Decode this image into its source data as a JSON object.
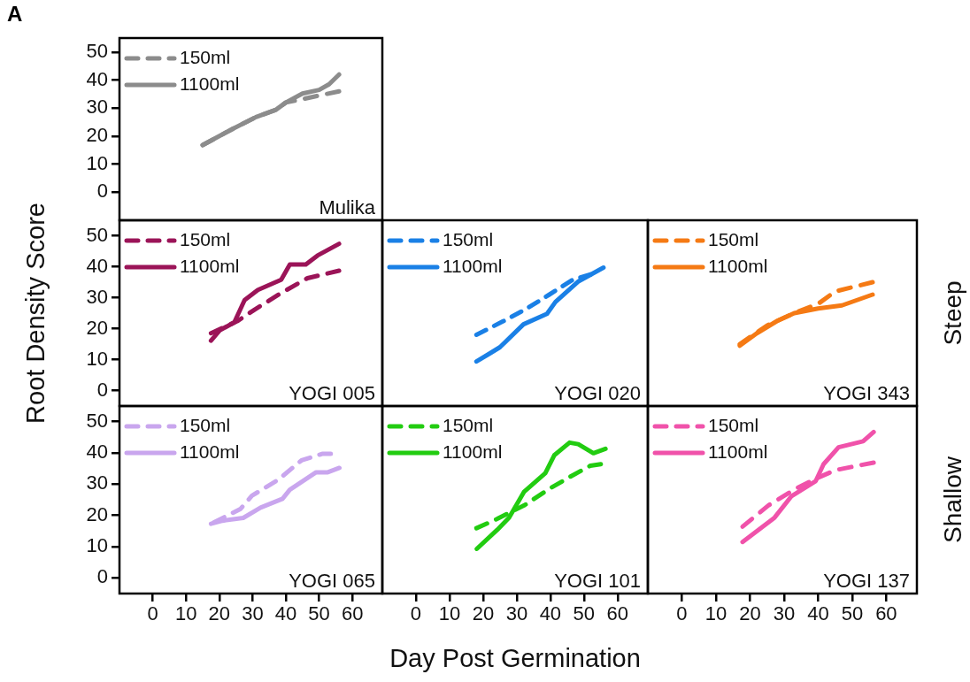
{
  "chart_data": [
    {
      "type": "line",
      "title": "A",
      "annotations": [
        "Mulika"
      ],
      "xlim": [
        -10,
        69
      ],
      "xticks": [
        0,
        10,
        20,
        30,
        40,
        50,
        60
      ],
      "ylim": [
        -10,
        55
      ],
      "yticks": [
        0,
        10,
        20,
        30,
        40,
        50
      ],
      "tick_labels": "y",
      "legend": "top left",
      "series": [
        {
          "name": "150ml",
          "color": "#8c8c8c",
          "line_style": "dashed",
          "x": [
            15,
            24,
            31,
            37,
            40,
            45,
            50,
            56
          ],
          "values": [
            16.8,
            22.6,
            26.8,
            29.4,
            32,
            33.2,
            34.5,
            36
          ]
        },
        {
          "name": "1100ml",
          "color": "#8c8c8c",
          "line_style": "solid",
          "x": [
            15,
            24,
            31,
            37,
            40,
            45,
            50,
            53,
            56
          ],
          "values": [
            16.8,
            22.6,
            26.8,
            29.4,
            32,
            35.2,
            36.5,
            38.5,
            42
          ]
        }
      ]
    },
    {
      "type": "line",
      "annotations": [
        "YOGI 005"
      ],
      "ylabel": "Root Density Score",
      "xlim": [
        -10,
        69
      ],
      "xticks": [
        0,
        10,
        20,
        30,
        40,
        50,
        60
      ],
      "ylim": [
        -5,
        55
      ],
      "yticks": [
        0,
        10,
        20,
        30,
        40,
        50
      ],
      "tick_labels": "y",
      "legend": "top left",
      "series": [
        {
          "name": "150ml",
          "color": "#9b1458",
          "line_style": "dashed",
          "x": [
            17.5,
            25.4,
            30.7,
            38.6,
            46.5,
            56
          ],
          "values": [
            18.5,
            22.4,
            26.2,
            31.5,
            36.3,
            38.7
          ]
        },
        {
          "name": "1100ml",
          "color": "#9b1458",
          "line_style": "solid",
          "x": [
            17.5,
            20.2,
            24.5,
            27.6,
            31.6,
            38.6,
            41.2,
            46,
            49.5,
            56
          ],
          "values": [
            16.1,
            19.5,
            22,
            29.2,
            32.5,
            35.8,
            40.7,
            40.7,
            43.6,
            47.4
          ]
        }
      ]
    },
    {
      "type": "line",
      "annotations": [
        "YOGI 020"
      ],
      "xlim": [
        -10,
        69
      ],
      "xticks": [
        0,
        10,
        20,
        30,
        40,
        50,
        60
      ],
      "ylim": [
        -5,
        55
      ],
      "yticks": [
        0,
        10,
        20,
        30,
        40,
        50
      ],
      "tick_labels": false,
      "legend": "top left",
      "series": [
        {
          "name": "150ml",
          "color": "#1a80e6",
          "line_style": "dashed",
          "x": [
            18,
            26,
            32.7,
            39.7,
            46.7,
            52
          ],
          "values": [
            18,
            22.4,
            26.3,
            31,
            35.8,
            37.5
          ]
        },
        {
          "name": "1100ml",
          "color": "#1a80e6",
          "line_style": "solid",
          "x": [
            18,
            22,
            25,
            32,
            39,
            41.5,
            48.4,
            55.8
          ],
          "values": [
            9.4,
            12,
            14,
            21.4,
            24.8,
            28.6,
            35.3,
            39.7
          ]
        }
      ]
    },
    {
      "type": "line",
      "annotations": [
        "YOGI 343"
      ],
      "y2label": "Steep",
      "xlim": [
        -10,
        69
      ],
      "xticks": [
        0,
        10,
        20,
        30,
        40,
        50,
        60
      ],
      "ylim": [
        -5,
        55
      ],
      "yticks": [
        0,
        10,
        20,
        30,
        40,
        50
      ],
      "tick_labels": false,
      "legend": "top left",
      "series": [
        {
          "name": "150ml",
          "color": "#f57a14",
          "line_style": "dashed",
          "x": [
            17,
            25,
            33,
            40,
            45,
            56
          ],
          "values": [
            15,
            21,
            25,
            28,
            32,
            35
          ]
        },
        {
          "name": "1100ml",
          "color": "#f57a14",
          "line_style": "solid",
          "x": [
            17,
            22,
            28,
            33,
            40,
            47,
            56
          ],
          "values": [
            14.5,
            18.5,
            22.5,
            25,
            26.5,
            27.5,
            31
          ]
        }
      ]
    },
    {
      "type": "line",
      "annotations": [
        "YOGI 065"
      ],
      "xlim": [
        -10,
        69
      ],
      "xticks": [
        0,
        10,
        20,
        30,
        40,
        50,
        60
      ],
      "ylim": [
        -5,
        55
      ],
      "yticks": [
        0,
        10,
        20,
        30,
        40,
        50
      ],
      "legend": "top left",
      "series": [
        {
          "name": "150ml",
          "color": "#c9a6ee",
          "line_style": "dashed",
          "x": [
            18.4,
            26.3,
            29.8,
            37.7,
            44.7,
            50.9,
            53.5
          ],
          "values": [
            17.8,
            22,
            26.3,
            31.4,
            37.6,
            39.7,
            39.7
          ]
        },
        {
          "name": "1100ml",
          "color": "#c9a6ee",
          "line_style": "solid",
          "x": [
            17.5,
            21,
            27.2,
            32.4,
            39,
            41.2,
            49.1,
            52.6,
            56.1
          ],
          "values": [
            17.3,
            18.3,
            19.2,
            22.5,
            25.3,
            28.2,
            33.8,
            33.8,
            35.2
          ]
        }
      ]
    },
    {
      "type": "line",
      "annotations": [
        "YOGI 101"
      ],
      "xlabel": "Day Post Germination",
      "xlim": [
        -10,
        69
      ],
      "xticks": [
        0,
        10,
        20,
        30,
        40,
        50,
        60
      ],
      "ylim": [
        -5,
        55
      ],
      "yticks": [
        0,
        10,
        20,
        30,
        40,
        50
      ],
      "tick_labels": "x",
      "legend": "top left",
      "series": [
        {
          "name": "150ml",
          "color": "#22cc11",
          "line_style": "dashed",
          "x": [
            18,
            24.2,
            32.2,
            39.8,
            46.1,
            51.9,
            55
          ],
          "values": [
            15.9,
            18.9,
            23.2,
            28.6,
            32.5,
            35.9,
            36.4
          ]
        },
        {
          "name": "1100ml",
          "color": "#22cc11",
          "line_style": "solid",
          "x": [
            18.1,
            24.2,
            27.7,
            32.2,
            38.5,
            41.2,
            45.7,
            48.3,
            52.8,
            56.4
          ],
          "values": [
            9.3,
            15.4,
            19.3,
            27.6,
            33.5,
            39.3,
            43.3,
            42.8,
            39.9,
            41.3
          ]
        }
      ]
    },
    {
      "type": "line",
      "annotations": [
        "YOGI 137"
      ],
      "y2label": "Shallow",
      "xlim": [
        -10,
        69
      ],
      "xticks": [
        0,
        10,
        20,
        30,
        40,
        50,
        60
      ],
      "ylim": [
        -5,
        55
      ],
      "yticks": [
        0,
        10,
        20,
        30,
        40,
        50
      ],
      "tick_labels": "x",
      "legend": "top left",
      "series": [
        {
          "name": "150ml",
          "color": "#f052aa",
          "line_style": "dashed",
          "x": [
            17.8,
            25.4,
            33.5,
            39.8,
            45.1,
            56.3
          ],
          "values": [
            16.4,
            23.2,
            28.6,
            32,
            34.5,
            36.9
          ]
        },
        {
          "name": "1100ml",
          "color": "#f052aa",
          "line_style": "solid",
          "x": [
            17.8,
            27.2,
            32.2,
            39.3,
            41.6,
            46,
            53.2,
            56.3
          ],
          "values": [
            11.5,
            19.3,
            26.2,
            31,
            36.4,
            41.8,
            43.7,
            46.7
          ]
        }
      ]
    }
  ]
}
